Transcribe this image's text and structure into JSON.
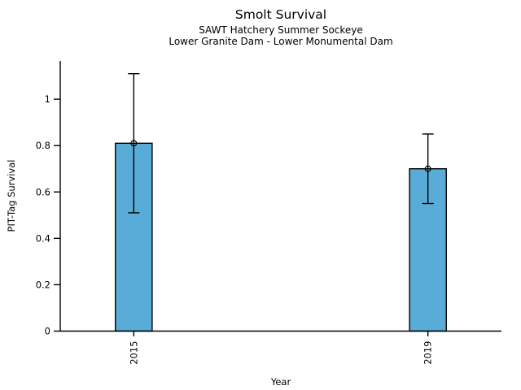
{
  "header": {
    "title": "Smolt Survival",
    "subtitle1": "SAWT Hatchery Summer Sockeye",
    "subtitle2": "Lower Granite Dam - Lower Monumental Dam"
  },
  "chart_data": {
    "type": "bar",
    "title": "Smolt Survival",
    "subtitles": [
      "SAWT Hatchery Summer Sockeye",
      "Lower Granite Dam - Lower Monumental Dam"
    ],
    "xlabel": "Year",
    "ylabel": "PIT-Tag Survival",
    "categories": [
      "2015",
      "2019"
    ],
    "values": [
      0.81,
      0.7
    ],
    "error_low": [
      0.51,
      0.55
    ],
    "error_high": [
      1.11,
      0.85
    ],
    "ytick_labels": [
      "0",
      "0.2",
      "0.4",
      "0.6",
      "0.8",
      "1"
    ],
    "yticks": [
      0,
      0.2,
      0.4,
      0.6,
      0.8,
      1
    ],
    "ylim": [
      0,
      1.165
    ],
    "xlim": [
      0,
      6
    ],
    "bar_centers": [
      1,
      5
    ],
    "bar_width_units": 0.5,
    "x_tick_rotation_deg": 90,
    "marker_style": "open-circle",
    "grid": false,
    "legend": null,
    "bar_color": "#5AACD8",
    "bar_edge_color": "#000000",
    "errorbar_color": "#000000",
    "axis_color": "#000000",
    "background_color": "#FFFFFF"
  }
}
